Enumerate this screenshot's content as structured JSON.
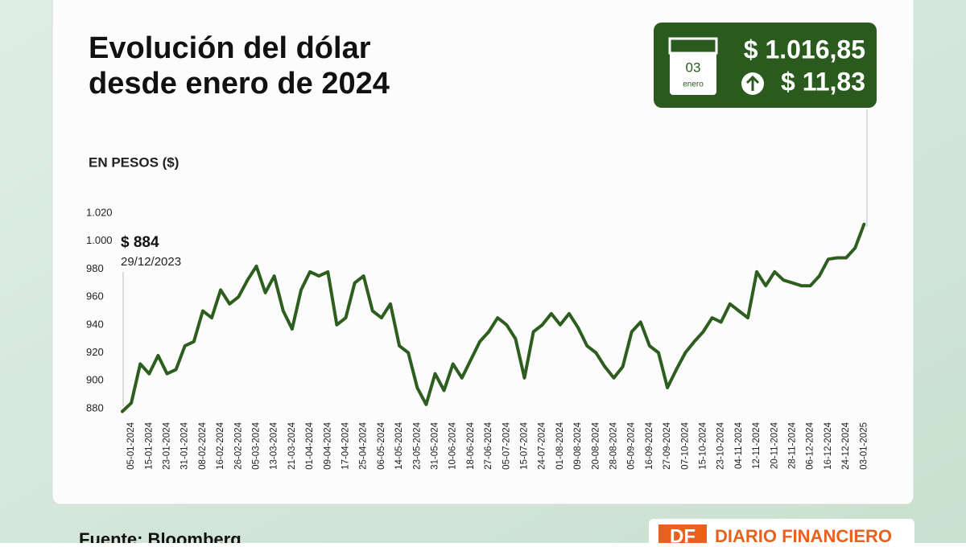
{
  "chart_data": {
    "type": "line",
    "title": [
      "Evolución del dólar",
      "desde enero de 2024"
    ],
    "y_label": "EN PESOS ($)",
    "start_annotation": {
      "value_label": "$ 884",
      "date": "29/12/2023"
    },
    "summary": {
      "day": "03",
      "month": "enero",
      "price": "$ 1.016,85",
      "change": "$ 11,83"
    },
    "source": "Fuente: Bloomberg",
    "brand": {
      "initials": "DF",
      "name": "DIARIO FINANCIERO"
    },
    "color": "#2e5e1f",
    "grid": false,
    "ylim": [
      874,
      1024
    ],
    "yticks": [
      880,
      900,
      920,
      940,
      960,
      980,
      {
        "value": 1000,
        "label": "1.000"
      },
      {
        "value": 1020,
        "label": "1.020"
      }
    ],
    "categories": [
      null,
      "05-01-2024",
      null,
      "15-01-2024",
      null,
      "23-01-2024",
      null,
      "31-01-2024",
      null,
      "08-02-2024",
      null,
      "16-02-2024",
      null,
      "26-02-2024",
      null,
      "05-03-2024",
      null,
      "13-03-2024",
      null,
      "21-03-2024",
      null,
      "01-04-2024",
      null,
      "09-04-2024",
      null,
      "17-04-2024",
      null,
      "25-04-2024",
      null,
      "06-05-2024",
      null,
      "14-05-2024",
      null,
      "23-05-2024",
      null,
      "31-05-2024",
      null,
      "10-06-2024",
      null,
      "18-06-2024",
      null,
      "27-06-2024",
      null,
      "05-07-2024",
      null,
      "15-07-2024",
      null,
      "24-07-2024",
      null,
      "01-08-2024",
      null,
      "09-08-2024",
      null,
      "20-08-2024",
      null,
      "28-08-2024",
      null,
      "05-09-2024",
      null,
      "16-09-2024",
      null,
      "27-09-2024",
      null,
      "07-10-2024",
      null,
      "15-10-2024",
      null,
      "23-10-2024",
      null,
      "04-11-2024",
      null,
      "12-11-2024",
      null,
      "20-11-2024",
      null,
      "28-11-2024",
      null,
      "06-12-2024",
      null,
      "16-12-2024",
      null,
      "24-12-2024",
      null,
      "03-01-2025"
    ],
    "values": [
      878,
      884,
      912,
      905,
      918,
      905,
      908,
      925,
      928,
      950,
      945,
      965,
      955,
      960,
      972,
      982,
      963,
      975,
      950,
      937,
      965,
      978,
      975,
      978,
      940,
      945,
      970,
      975,
      950,
      945,
      955,
      925,
      920,
      895,
      883,
      905,
      893,
      912,
      902,
      915,
      928,
      935,
      945,
      940,
      930,
      902,
      935,
      940,
      948,
      940,
      948,
      938,
      925,
      920,
      910,
      902,
      910,
      935,
      942,
      925,
      920,
      895,
      908,
      920,
      928,
      935,
      945,
      942,
      955,
      950,
      945,
      978,
      968,
      978,
      972,
      970,
      968,
      968,
      975,
      987,
      988,
      988,
      995,
      1012
    ]
  }
}
